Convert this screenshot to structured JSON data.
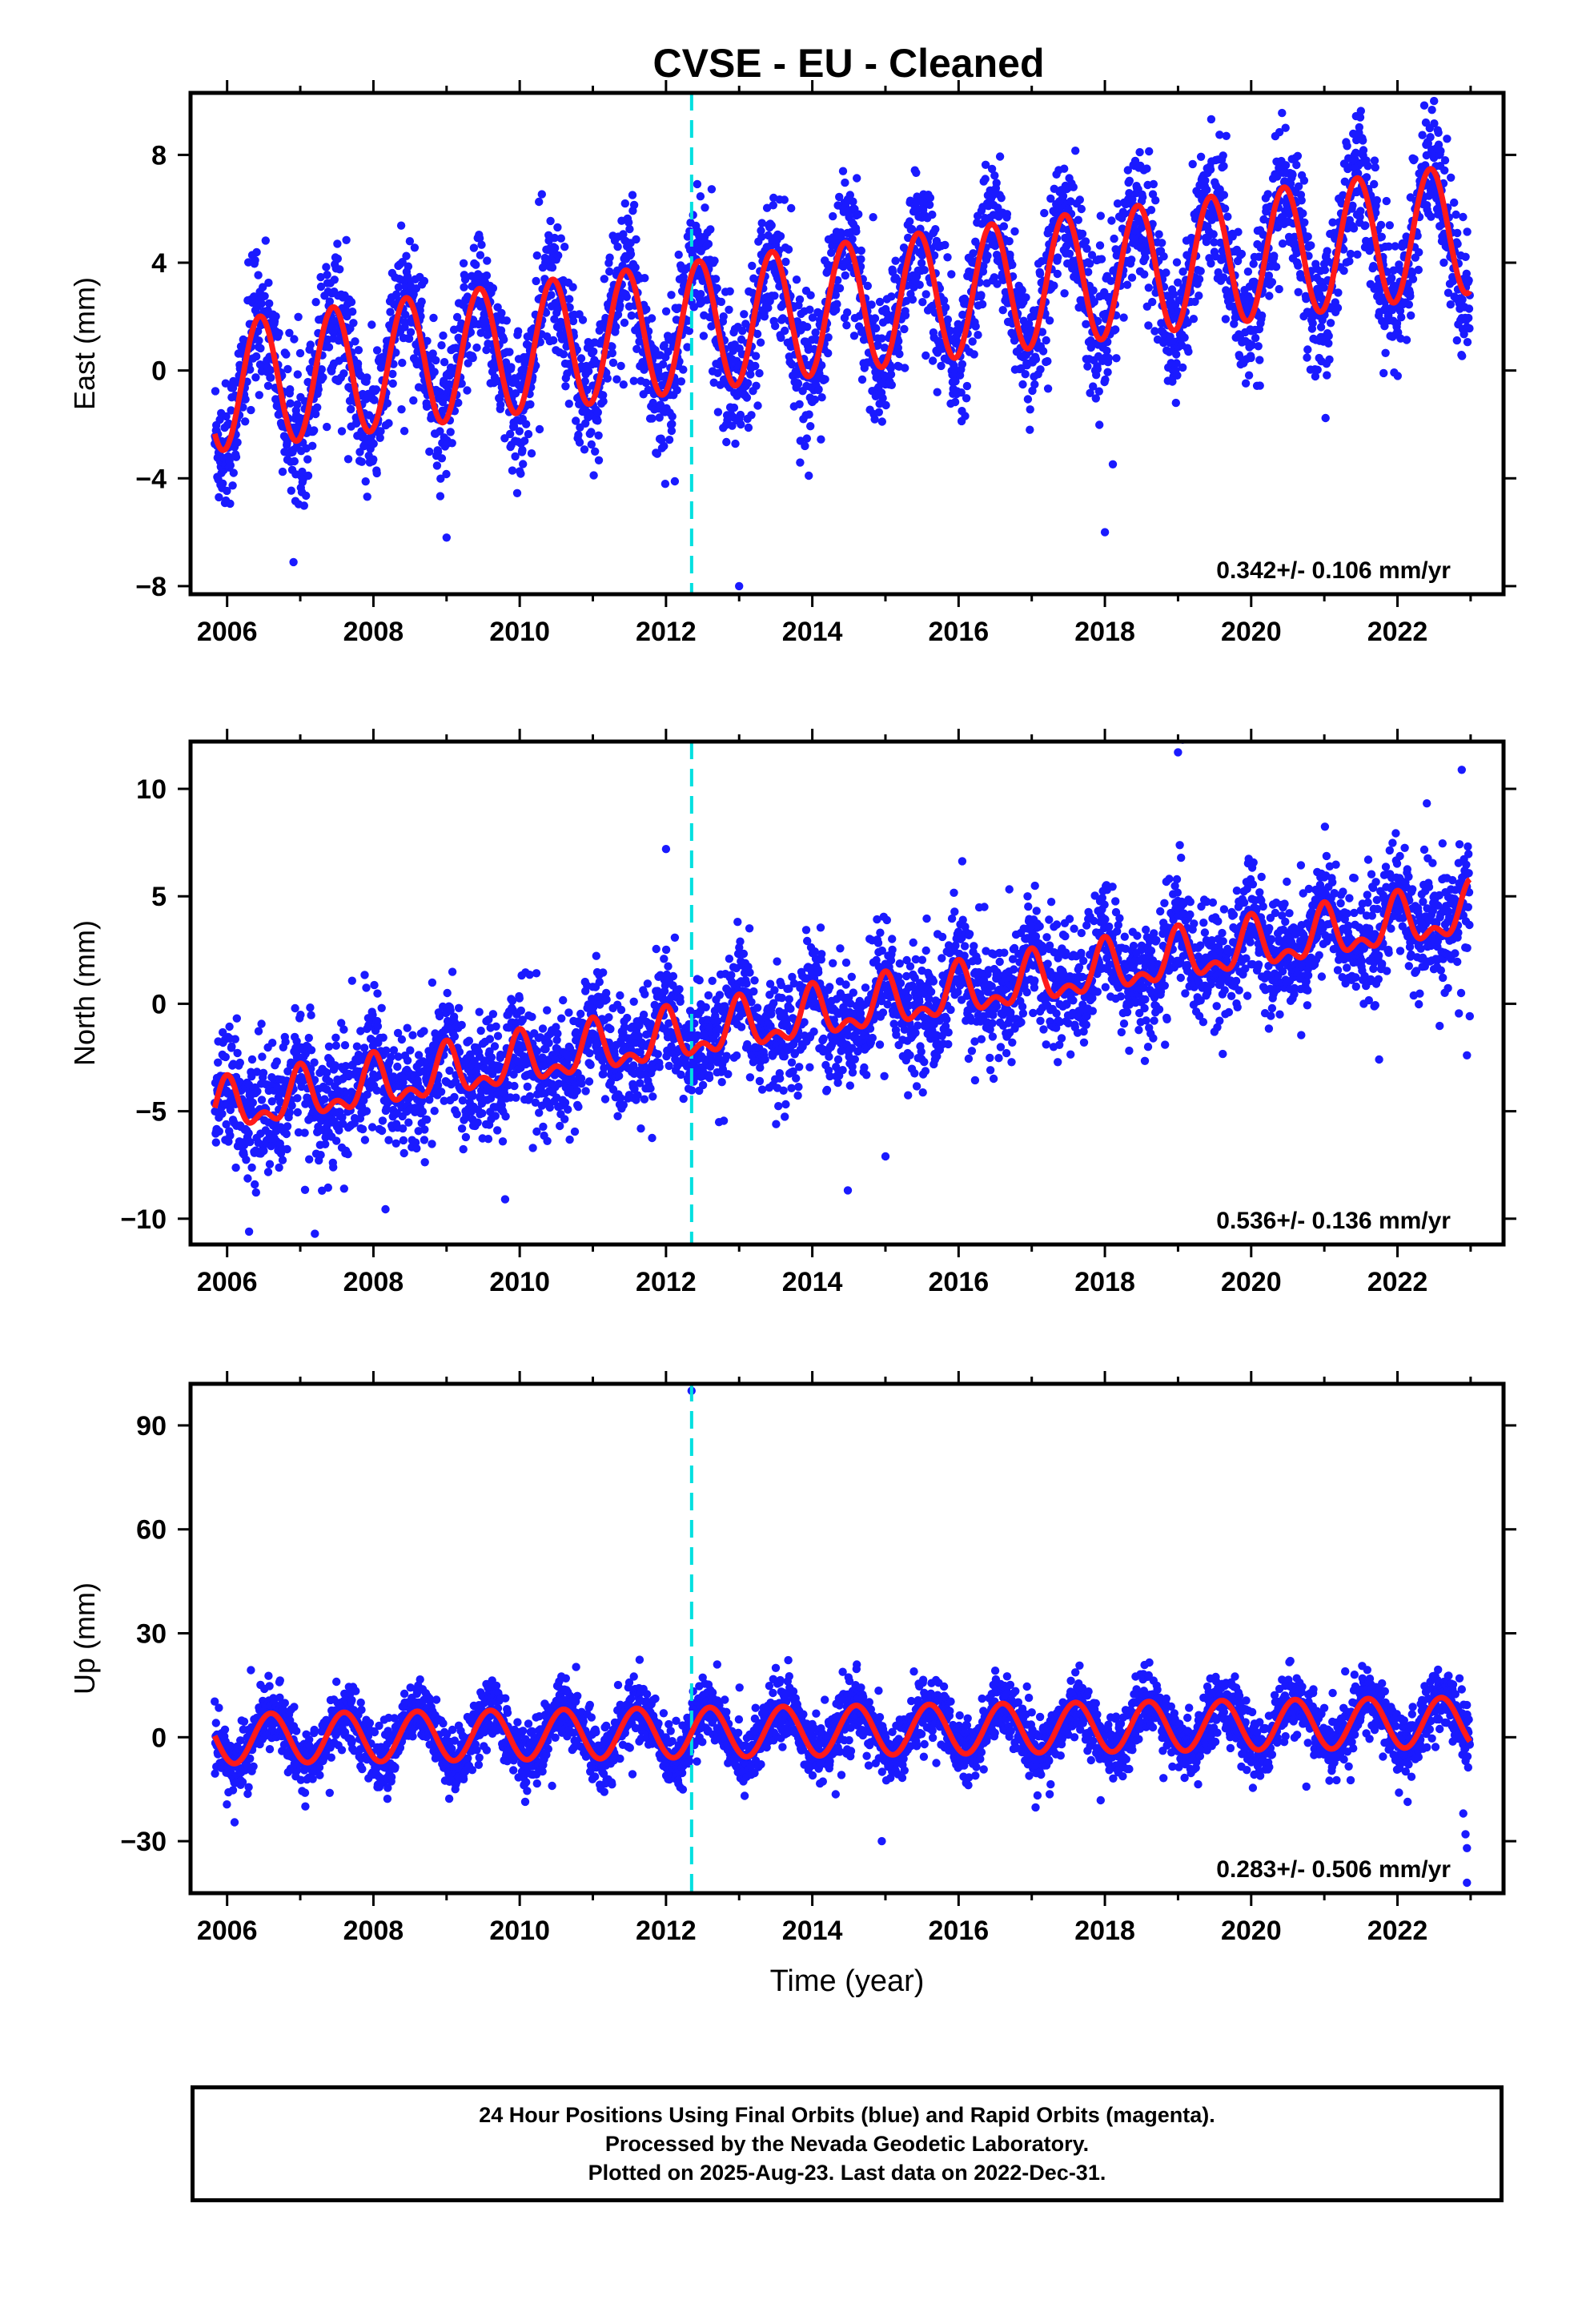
{
  "title": "CVSE  - EU - Cleaned",
  "footer": {
    "lines": [
      "24 Hour Positions Using Final Orbits (blue) and Rapid Orbits (magenta).",
      "Processed by the Nevada Geodetic Laboratory.",
      "Plotted on 2025-Aug-23. Last data on 2022-Dec-31."
    ]
  },
  "colors": {
    "points": "#1a1aff",
    "model": "#ff1a1a",
    "event_line": "#00e0e0",
    "frame": "#000000"
  },
  "chart_data": [
    {
      "type": "scatter",
      "panel": "east",
      "ylabel": "East (mm)",
      "xlabel": "",
      "xlim": [
        2005.5,
        2023.45
      ],
      "ylim": [
        -8.3,
        10.3
      ],
      "xticks": [
        2006,
        2008,
        2010,
        2012,
        2014,
        2016,
        2018,
        2020,
        2022
      ],
      "xtick_labels": [
        "2006",
        "2008",
        "2010",
        "2012",
        "2014",
        "2016",
        "2018",
        "2020",
        "2022"
      ],
      "yticks": [
        -8,
        -4,
        0,
        4,
        8
      ],
      "ytick_labels": [
        "−8",
        "−4",
        "0",
        "4",
        "8"
      ],
      "rate_label": "0.342+/- 0.106 mm/yr",
      "event_line_x": 2012.35,
      "series": [
        {
          "kind": "daily_positions",
          "color": "#1a1aff",
          "start_year": 2005.83,
          "end_year": 2022.99,
          "trend_mm_per_yr": 0.342,
          "offset_mm": -0.6,
          "annual_amplitude_mm": 2.4,
          "annual_phase_peak": 0.45,
          "scatter_sd_mm": 1.2,
          "outliers": [
            [
              2013.0,
              -8.0
            ],
            [
              2022.5,
              10.0
            ],
            [
              2018.0,
              -6.0
            ],
            [
              2009.0,
              -6.2
            ],
            [
              2012.2,
              3.9
            ]
          ]
        },
        {
          "kind": "seasonal_model",
          "color": "#ff1a1a",
          "start_year": 2005.83,
          "end_year": 2022.99,
          "trend_mm_per_yr": 0.342,
          "offset_mm": -0.6,
          "annual_amplitude_mm": 2.4,
          "annual_phase_peak": 0.45
        }
      ]
    },
    {
      "type": "scatter",
      "panel": "north",
      "ylabel": "North (mm)",
      "xlabel": "",
      "xlim": [
        2005.5,
        2023.45
      ],
      "ylim": [
        -11.2,
        12.2
      ],
      "xticks": [
        2006,
        2008,
        2010,
        2012,
        2014,
        2016,
        2018,
        2020,
        2022
      ],
      "xtick_labels": [
        "2006",
        "2008",
        "2010",
        "2012",
        "2014",
        "2016",
        "2018",
        "2020",
        "2022"
      ],
      "yticks": [
        -10,
        -5,
        0,
        5,
        10
      ],
      "ytick_labels": [
        "−10",
        "−5",
        "0",
        "5",
        "10"
      ],
      "rate_label": "0.536+/- 0.136 mm/yr",
      "event_line_x": 2012.35,
      "series": [
        {
          "kind": "daily_positions",
          "color": "#1a1aff",
          "start_year": 2005.83,
          "end_year": 2022.99,
          "trend_mm_per_yr": 0.536,
          "offset_mm": -5.0,
          "annual_amplitude_mm": 1.0,
          "annual_phase_peak": 0.0,
          "semiannual_amplitude_mm": 0.6,
          "scatter_sd_mm": 1.3,
          "outliers": [
            [
              2019.0,
              11.7
            ],
            [
              2012.0,
              7.2
            ],
            [
              2007.2,
              -10.7
            ],
            [
              2006.3,
              -10.6
            ],
            [
              2009.8,
              -9.1
            ],
            [
              2015.0,
              -7.1
            ],
            [
              2022.95,
              -2.4
            ]
          ]
        },
        {
          "kind": "seasonal_model",
          "color": "#ff1a1a",
          "start_year": 2005.83,
          "end_year": 2022.99,
          "trend_mm_per_yr": 0.536,
          "offset_mm": -5.0,
          "annual_amplitude_mm": 1.0,
          "annual_phase_peak": 0.0,
          "semiannual_amplitude_mm": 0.6
        }
      ]
    },
    {
      "type": "scatter",
      "panel": "up",
      "ylabel": "Up (mm)",
      "xlabel": "Time (year)",
      "xlim": [
        2005.5,
        2023.45
      ],
      "ylim": [
        -45,
        102
      ],
      "xticks": [
        2006,
        2008,
        2010,
        2012,
        2014,
        2016,
        2018,
        2020,
        2022
      ],
      "xtick_labels": [
        "2006",
        "2008",
        "2010",
        "2012",
        "2014",
        "2016",
        "2018",
        "2020",
        "2022"
      ],
      "yticks": [
        -30,
        0,
        30,
        60,
        90
      ],
      "ytick_labels": [
        "−30",
        "0",
        "30",
        "60",
        "90"
      ],
      "rate_label": "0.283+/- 0.506 mm/yr",
      "event_line_x": 2012.35,
      "series": [
        {
          "kind": "daily_positions",
          "color": "#1a1aff",
          "start_year": 2005.83,
          "end_year": 2022.99,
          "trend_mm_per_yr": 0.283,
          "offset_mm": -0.5,
          "annual_amplitude_mm": 7.2,
          "annual_phase_peak": 0.6,
          "scatter_sd_mm": 4.2,
          "outliers": [
            [
              2012.35,
              100.0
            ],
            [
              2022.95,
              -42.0
            ],
            [
              2022.95,
              -32.0
            ],
            [
              2022.93,
              -28.0
            ],
            [
              2022.9,
              -22.0
            ],
            [
              2014.95,
              -30.0
            ],
            [
              2012.7,
              21.0
            ]
          ]
        },
        {
          "kind": "seasonal_model",
          "color": "#ff1a1a",
          "start_year": 2005.83,
          "end_year": 2022.99,
          "trend_mm_per_yr": 0.283,
          "offset_mm": -0.5,
          "annual_amplitude_mm": 7.2,
          "annual_phase_peak": 0.6
        }
      ]
    }
  ]
}
